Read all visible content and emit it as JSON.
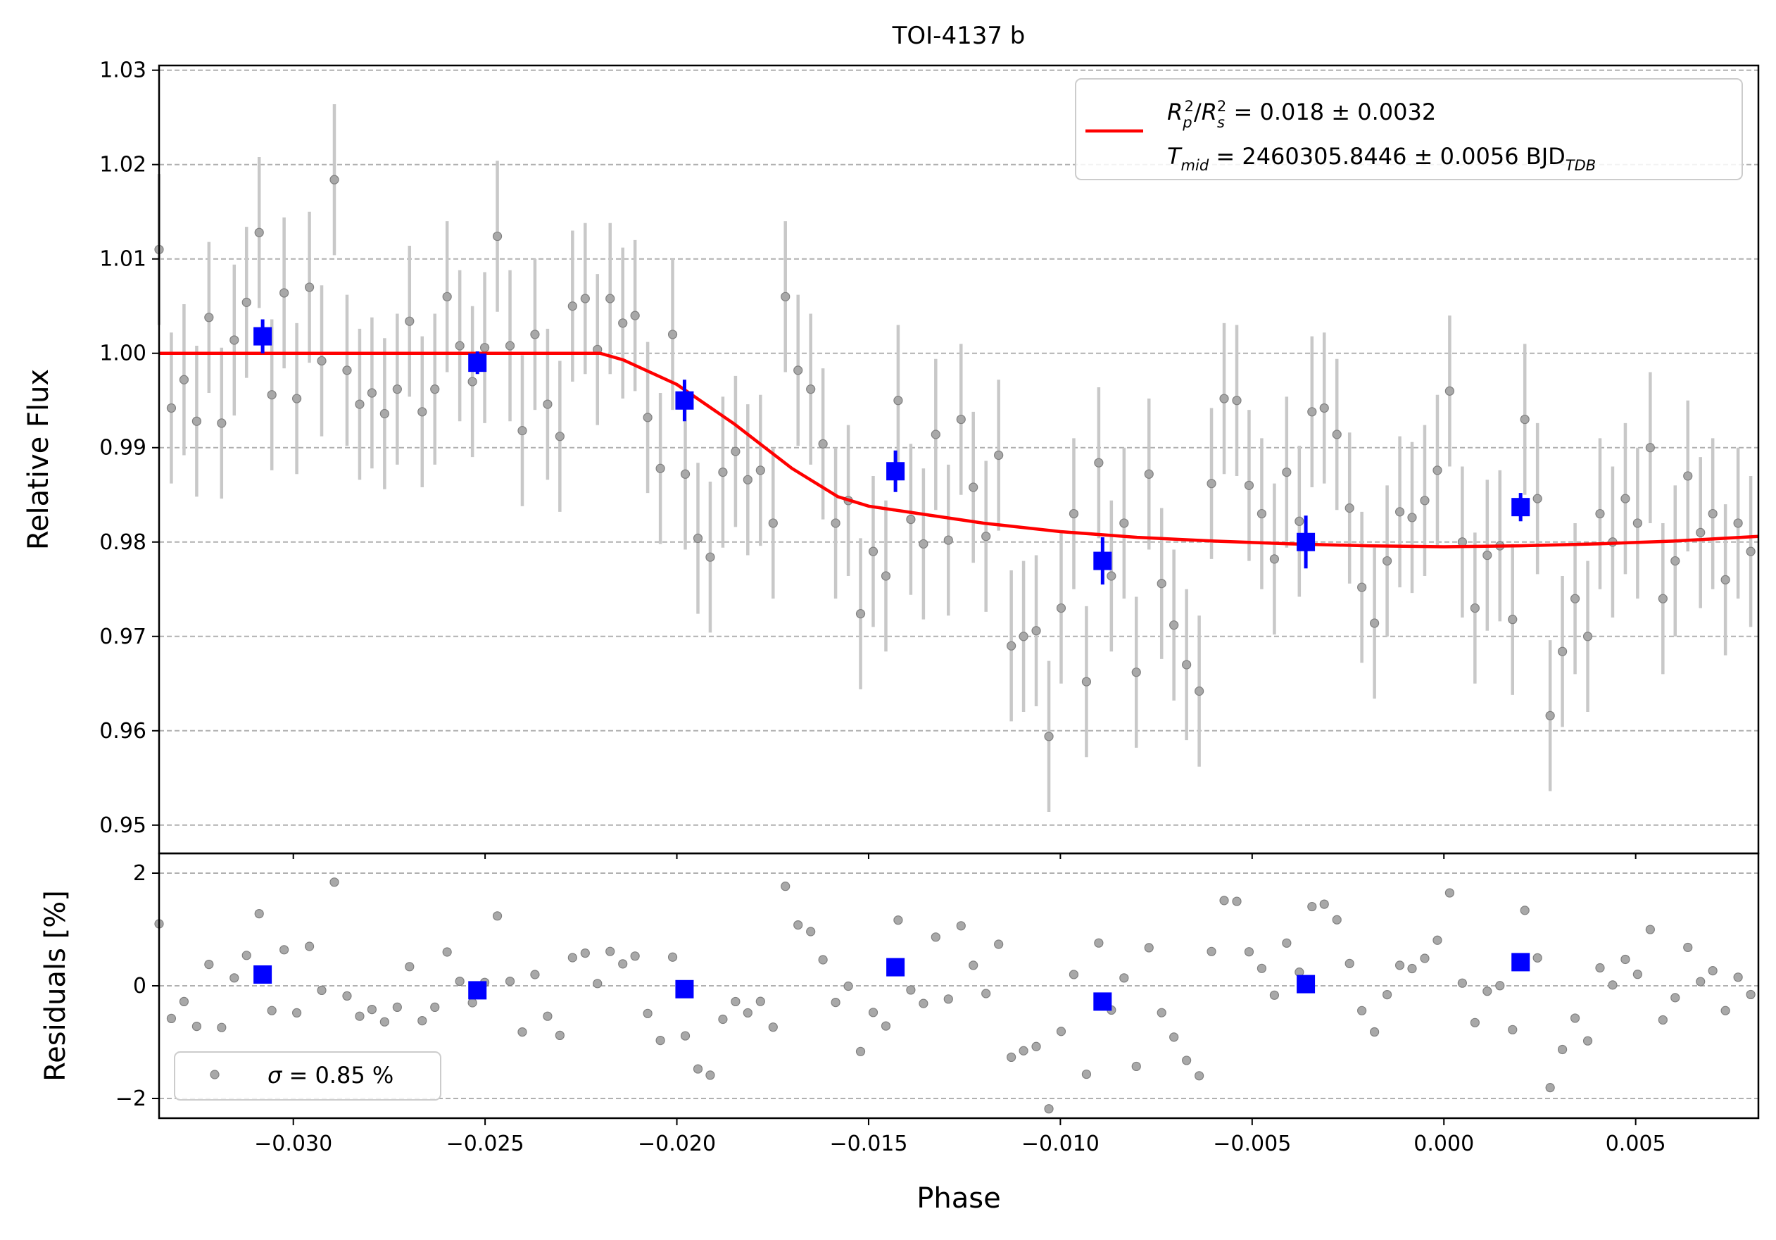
{
  "chart_data": {
    "type": "scatter",
    "title": "TOI-4137 b",
    "xlabel": "Phase",
    "top_panel": {
      "ylabel": "Relative Flux",
      "xlim": [
        -0.0335,
        0.0082
      ],
      "ylim": [
        0.947,
        1.0305
      ],
      "yticks": [
        0.95,
        0.96,
        0.97,
        0.98,
        0.99,
        1.0,
        1.01,
        1.02,
        1.03
      ],
      "ytick_labels": [
        "0.95",
        "0.96",
        "0.97",
        "0.98",
        "0.99",
        "1.00",
        "1.01",
        "1.02",
        "1.03"
      ],
      "grid": "horizontal dashed",
      "legend_position": "top-right",
      "legend": {
        "line1": {
          "main": "R",
          "sub1": "p",
          "sup1": "2",
          "slash": "/",
          "main2": "R",
          "sub2": "s",
          "sup2": "2",
          "rest": " = 0.018 ± 0.0032"
        },
        "line2": {
          "main": "T",
          "sub": "mid",
          "rest": " = 2460305.8446 ± 0.0056 BJD",
          "sub2": "TDB"
        }
      },
      "model": {
        "color": "#ff0000",
        "phase": [
          -0.0335,
          -0.022,
          -0.0214,
          -0.02,
          -0.0185,
          -0.017,
          -0.0158,
          -0.015,
          -0.014,
          -0.012,
          -0.01,
          -0.008,
          -0.006,
          -0.004,
          -0.002,
          0.0,
          0.002,
          0.004,
          0.006,
          0.0082
        ],
        "flux": [
          1.0,
          1.0,
          0.9993,
          0.9967,
          0.9925,
          0.9878,
          0.9848,
          0.9838,
          0.9832,
          0.982,
          0.9811,
          0.9805,
          0.9801,
          0.9798,
          0.9796,
          0.9795,
          0.9796,
          0.9798,
          0.9801,
          0.9806
        ]
      },
      "raw": {
        "color": "#808080",
        "phase": [
          -0.0335,
          -0.03318,
          -0.03285,
          -0.03252,
          -0.0322,
          -0.03187,
          -0.03154,
          -0.03122,
          -0.03089,
          -0.03056,
          -0.03024,
          -0.02991,
          -0.02958,
          -0.02926,
          -0.02893,
          -0.0286,
          -0.02827,
          -0.02795,
          -0.02762,
          -0.02729,
          -0.02697,
          -0.02664,
          -0.02631,
          -0.02599,
          -0.02566,
          -0.02533,
          -0.02501,
          -0.02468,
          -0.02435,
          -0.02403,
          -0.0237,
          -0.02337,
          -0.02305,
          -0.02272,
          -0.02239,
          -0.02207,
          -0.02174,
          -0.02141,
          -0.02109,
          -0.02076,
          -0.02043,
          -0.02011,
          -0.01978,
          -0.01945,
          -0.01913,
          -0.0188,
          -0.01847,
          -0.01815,
          -0.01782,
          -0.01749,
          -0.01717,
          -0.01684,
          -0.01651,
          -0.01619,
          -0.01586,
          -0.01553,
          -0.01521,
          -0.01488,
          -0.01455,
          -0.01423,
          -0.0139,
          -0.01357,
          -0.01325,
          -0.01292,
          -0.01259,
          -0.01227,
          -0.01194,
          -0.01161,
          -0.01128,
          -0.01096,
          -0.01063,
          -0.0103,
          -0.00998,
          -0.00965,
          -0.00932,
          -0.009,
          -0.00867,
          -0.00834,
          -0.00802,
          -0.00769,
          -0.00736,
          -0.00704,
          -0.00671,
          -0.00638,
          -0.00606,
          -0.00573,
          -0.0054,
          -0.00508,
          -0.00475,
          -0.00442,
          -0.0041,
          -0.00377,
          -0.00344,
          -0.00312,
          -0.00279,
          -0.00246,
          -0.00214,
          -0.00181,
          -0.00148,
          -0.00115,
          -0.00083,
          -0.0005,
          -0.00017,
          0.00015,
          0.00048,
          0.00081,
          0.00113,
          0.00146,
          0.00179,
          0.00211,
          0.00244,
          0.00277,
          0.00309,
          0.00342,
          0.00375,
          0.00407,
          0.0044,
          0.00473,
          0.00505,
          0.00538,
          0.00571,
          0.00603,
          0.00636,
          0.00669,
          0.00701,
          0.00734,
          0.00767,
          0.008
        ],
        "flux": [
          1.011,
          0.9942,
          0.9972,
          0.9928,
          1.0038,
          0.9926,
          1.0014,
          1.0054,
          1.0128,
          0.9956,
          1.0064,
          0.9952,
          1.007,
          0.9992,
          1.0184,
          0.9982,
          0.9946,
          0.9958,
          0.9936,
          0.9962,
          1.0034,
          0.9938,
          0.9962,
          1.006,
          1.0008,
          0.997,
          1.0006,
          1.0124,
          1.0008,
          0.9918,
          1.002,
          0.9946,
          0.9912,
          1.005,
          1.0058,
          1.0004,
          1.0058,
          1.0032,
          1.004,
          0.9932,
          0.9878,
          1.002,
          0.9872,
          0.9804,
          0.9784,
          0.9874,
          0.9896,
          0.9866,
          0.9876,
          0.982,
          1.006,
          0.9982,
          0.9962,
          0.9904,
          0.982,
          0.9844,
          0.9724,
          0.979,
          0.9764,
          0.995,
          0.9824,
          0.9798,
          0.9914,
          0.9802,
          0.993,
          0.9858,
          0.9806,
          0.9892,
          0.969,
          0.97,
          0.9706,
          0.9594,
          0.973,
          0.983,
          0.9652,
          0.9884,
          0.9764,
          0.982,
          0.9662,
          0.9872,
          0.9756,
          0.9712,
          0.967,
          0.9642,
          0.9862,
          0.9952,
          0.995,
          0.986,
          0.983,
          0.9782,
          0.9874,
          0.9822,
          0.9938,
          0.9942,
          0.9914,
          0.9836,
          0.9752,
          0.9714,
          0.978,
          0.9832,
          0.9826,
          0.9844,
          0.9876,
          0.996,
          0.98,
          0.973,
          0.9786,
          0.9796,
          0.9718,
          0.993,
          0.9846,
          0.9616,
          0.9684,
          0.974,
          0.97,
          0.983,
          0.98,
          0.9846,
          0.982,
          0.99,
          0.974,
          0.978,
          0.987,
          0.981,
          0.983,
          0.976,
          0.982,
          0.979
        ],
        "error": 0.008
      },
      "binned": {
        "color": "#0000ff",
        "phase": [
          -0.0308,
          -0.0252,
          -0.0198,
          -0.0143,
          -0.0089,
          -0.0036,
          0.002
        ],
        "flux": [
          1.0018,
          0.999,
          0.995,
          0.9875,
          0.978,
          0.98,
          0.9837
        ],
        "error": [
          0.0018,
          0.0012,
          0.0022,
          0.0022,
          0.0025,
          0.0028,
          0.0015
        ]
      }
    },
    "bottom_panel": {
      "ylabel": "Residuals [%]",
      "ylim": [
        -2.35,
        2.35
      ],
      "yticks": [
        -2,
        0,
        2
      ],
      "ytick_labels": [
        "−2",
        "0",
        "2"
      ],
      "grid": "horizontal dashed",
      "legend_position": "bottom-left",
      "legend": {
        "symbol": "σ",
        "rest": " = 0.85 %"
      },
      "binned_residuals": [
        0.2,
        -0.08,
        -0.06,
        0.33,
        -0.28,
        0.03,
        0.42
      ]
    },
    "xticks": [
      -0.03,
      -0.025,
      -0.02,
      -0.015,
      -0.01,
      -0.005,
      0.0,
      0.005
    ],
    "xtick_labels": [
      "−0.030",
      "−0.025",
      "−0.020",
      "−0.015",
      "−0.010",
      "−0.005",
      "0.000",
      "0.005"
    ]
  }
}
